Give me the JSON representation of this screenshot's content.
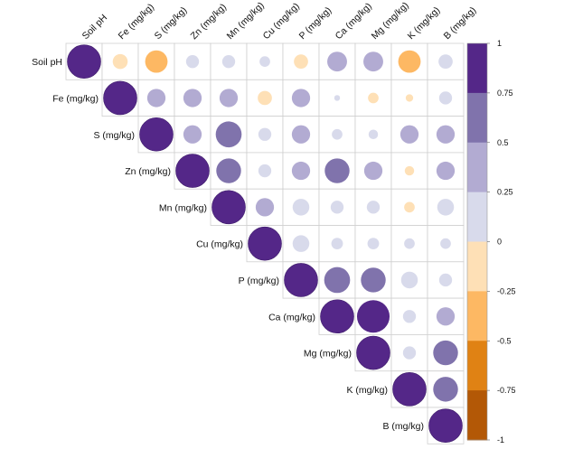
{
  "chart_data": {
    "type": "heatmap",
    "variables": [
      "Soil pH",
      "Fe (mg/kg)",
      "S (mg/kg)",
      "Zn (mg/kg)",
      "Mn (mg/kg)",
      "Cu (mg/kg)",
      "P (mg/kg)",
      "Ca (mg/kg)",
      "Mg (mg/kg)",
      "K (mg/kg)",
      "B (mg/kg)"
    ],
    "matrix_shape": "upper-triangle",
    "glyph": "circle",
    "correlations": [
      [
        1.0,
        -0.2,
        -0.45,
        0.15,
        0.15,
        0.1,
        -0.18,
        0.35,
        0.35,
        -0.45,
        0.18
      ],
      [
        null,
        1.0,
        0.3,
        0.3,
        0.3,
        -0.18,
        0.3,
        0.03,
        -0.1,
        -0.05,
        0.15
      ],
      [
        null,
        null,
        1.0,
        0.3,
        0.6,
        0.15,
        0.3,
        0.1,
        0.08,
        0.3,
        0.3
      ],
      [
        null,
        null,
        null,
        1.0,
        0.55,
        0.15,
        0.3,
        0.55,
        0.3,
        -0.08,
        0.3
      ],
      [
        null,
        null,
        null,
        null,
        1.0,
        0.3,
        0.25,
        0.15,
        0.15,
        -0.1,
        0.25
      ],
      [
        null,
        null,
        null,
        null,
        null,
        1.0,
        0.25,
        0.12,
        0.12,
        0.1,
        0.1
      ],
      [
        null,
        null,
        null,
        null,
        null,
        null,
        1.0,
        0.6,
        0.55,
        0.25,
        0.15
      ],
      [
        null,
        null,
        null,
        null,
        null,
        null,
        null,
        1.0,
        0.95,
        0.15,
        0.3
      ],
      [
        null,
        null,
        null,
        null,
        null,
        null,
        null,
        null,
        1.0,
        0.15,
        0.55
      ],
      [
        null,
        null,
        null,
        null,
        null,
        null,
        null,
        null,
        null,
        1.0,
        0.55
      ],
      [
        null,
        null,
        null,
        null,
        null,
        null,
        null,
        null,
        null,
        null,
        1.0
      ]
    ],
    "colorbar": {
      "range": [
        -1,
        1
      ],
      "ticks": [
        "1",
        "0.75",
        "0.5",
        "0.25",
        "0",
        "-0.25",
        "-0.5",
        "-0.75",
        "-1"
      ],
      "colors_top_to_bottom": [
        "#542788",
        "#8073ac",
        "#b2abd2",
        "#d8daeb",
        "#fee0b6",
        "#fdb863",
        "#e08214",
        "#b35806"
      ]
    },
    "grid": true,
    "legend_placement": "right"
  }
}
